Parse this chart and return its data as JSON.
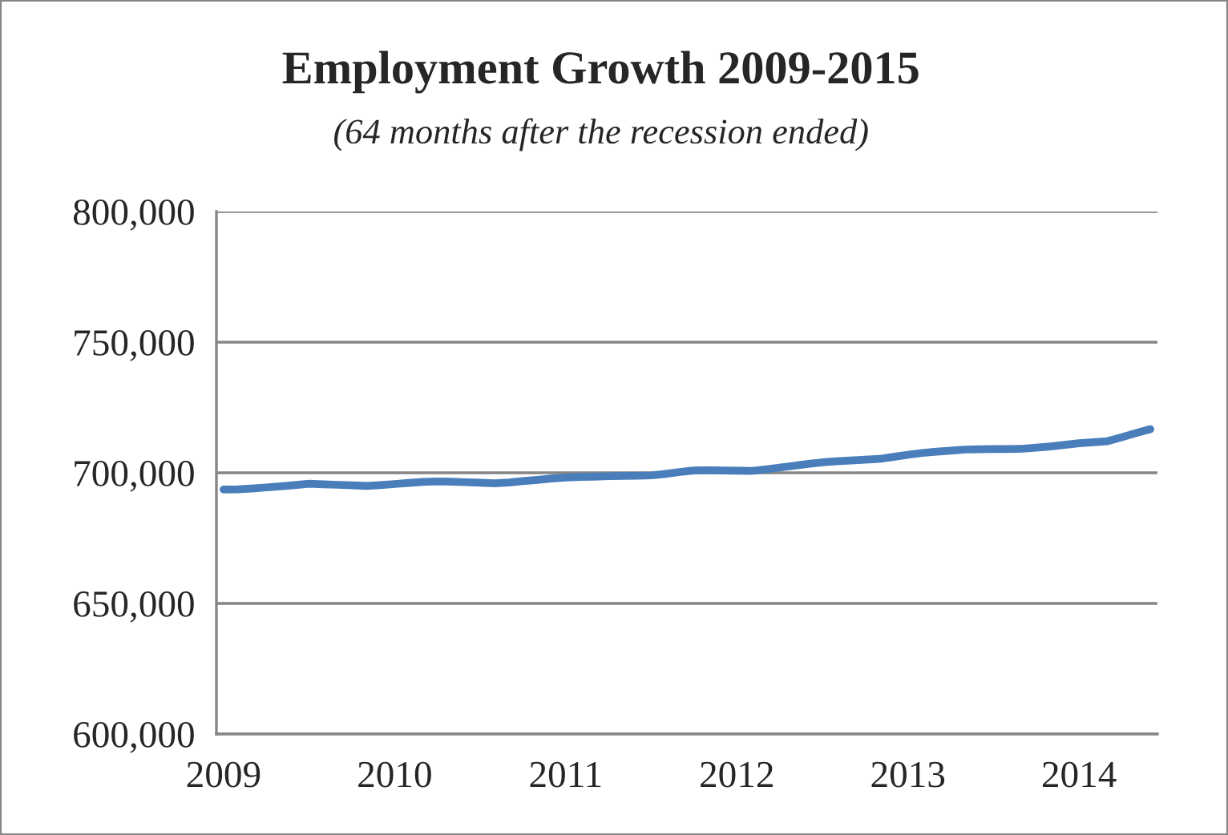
{
  "chart_data": {
    "type": "line",
    "title": "Employment Growth 2009-2015",
    "subtitle": "(64 months after the recession ended)",
    "categories": [
      "2009",
      null,
      null,
      null,
      null,
      null,
      null,
      null,
      null,
      null,
      null,
      null,
      "2010",
      null,
      null,
      null,
      null,
      null,
      null,
      null,
      null,
      null,
      null,
      null,
      "2011",
      null,
      null,
      null,
      null,
      null,
      null,
      null,
      null,
      null,
      null,
      null,
      "2012",
      null,
      null,
      null,
      null,
      null,
      null,
      null,
      null,
      null,
      null,
      null,
      "2013",
      null,
      null,
      null,
      null,
      null,
      null,
      null,
      null,
      null,
      null,
      null,
      "2014",
      null,
      null,
      null,
      null,
      null
    ],
    "series": [
      {
        "color": "#4a7ebb",
        "values": [
          693600,
          693700,
          694000,
          694400,
          694800,
          695300,
          695800,
          695600,
          695400,
          695200,
          695000,
          695300,
          695700,
          696100,
          696500,
          696700,
          696600,
          696400,
          696200,
          696000,
          696300,
          696800,
          697300,
          697800,
          698200,
          698400,
          698500,
          698700,
          698800,
          698900,
          699000,
          699600,
          700300,
          700900,
          701000,
          700900,
          700800,
          700700,
          701300,
          702000,
          702700,
          703400,
          704000,
          704400,
          704700,
          705000,
          705300,
          706100,
          706900,
          707600,
          708100,
          708500,
          708900,
          709000,
          709100,
          709100,
          709200,
          709600,
          710100,
          710700,
          711300,
          711700,
          712100,
          713600,
          715200,
          716700
        ]
      }
    ],
    "ylim": [
      600000,
      800000
    ],
    "yticks": [
      {
        "value": 600000,
        "label": "600,000"
      },
      {
        "value": 650000,
        "label": "650,000"
      },
      {
        "value": 700000,
        "label": "700,000"
      },
      {
        "value": 750000,
        "label": "750,000"
      },
      {
        "value": 800000,
        "label": "800,000"
      }
    ],
    "grid": "y",
    "legend": false,
    "marker": "none",
    "line_style": "solid"
  }
}
